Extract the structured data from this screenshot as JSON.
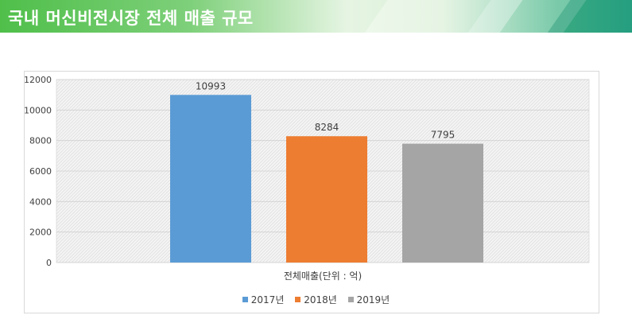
{
  "header": {
    "title": "국내 머신비전시장 전체 매출 규모"
  },
  "colors": {
    "s2017": "#5b9bd5",
    "s2018": "#ed7d31",
    "s2019": "#a5a5a5"
  },
  "chart_data": {
    "type": "bar",
    "categories": [
      "전체매출(단위 : 억)"
    ],
    "xlabel": "전체매출(단위 : 억)",
    "ylabel": "",
    "ylim": [
      0,
      12000
    ],
    "yticks": [
      0,
      2000,
      4000,
      6000,
      8000,
      10000,
      12000
    ],
    "grid": true,
    "legend_position": "bottom",
    "series": [
      {
        "name": "2017년",
        "values": [
          10993
        ]
      },
      {
        "name": "2018년",
        "values": [
          8284
        ]
      },
      {
        "name": "2019년",
        "values": [
          7795
        ]
      }
    ]
  }
}
